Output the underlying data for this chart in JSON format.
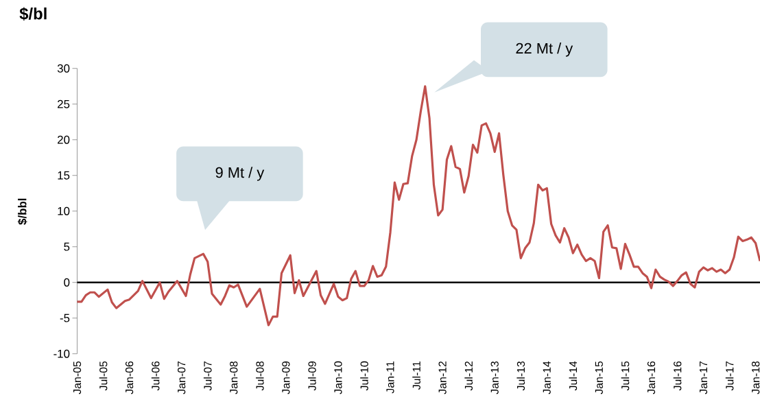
{
  "chart_data": {
    "type": "line",
    "title": "$/bl",
    "ylabel": "$/bbl",
    "color": "#c0504d",
    "marker": "none",
    "line_style": "solid",
    "x": [
      "2005-01",
      "2005-02",
      "2005-03",
      "2005-04",
      "2005-05",
      "2005-06",
      "2005-08",
      "2005-09",
      "2005-10",
      "2005-12",
      "2006-01",
      "2006-03",
      "2006-04",
      "2006-06",
      "2006-08",
      "2006-09",
      "2006-10",
      "2006-12",
      "2007-02",
      "2007-03",
      "2007-04",
      "2007-06",
      "2007-07",
      "2007-08",
      "2007-10",
      "2007-11",
      "2007-12",
      "2008-01",
      "2008-02",
      "2008-04",
      "2008-07",
      "2008-09",
      "2008-10",
      "2008-11",
      "2008-12",
      "2009-02",
      "2009-03",
      "2009-04",
      "2009-05",
      "2009-08",
      "2009-09",
      "2009-10",
      "2009-12",
      "2010-01",
      "2010-02",
      "2010-03",
      "2010-04",
      "2010-05",
      "2010-06",
      "2010-07",
      "2010-08",
      "2010-09",
      "2010-10",
      "2010-11",
      "2010-12",
      "2011-01",
      "2011-02",
      "2011-03",
      "2011-04",
      "2011-05",
      "2011-06",
      "2011-07",
      "2011-08",
      "2011-09",
      "2011-10",
      "2011-11",
      "2011-12",
      "2012-01",
      "2012-02",
      "2012-03",
      "2012-04",
      "2012-05",
      "2012-06",
      "2012-07",
      "2012-08",
      "2012-09",
      "2012-10",
      "2012-11",
      "2012-12",
      "2013-01",
      "2013-02",
      "2013-03",
      "2013-04",
      "2013-05",
      "2013-06",
      "2013-07",
      "2013-08",
      "2013-09",
      "2013-10",
      "2013-11",
      "2013-12",
      "2014-01",
      "2014-02",
      "2014-03",
      "2014-04",
      "2014-05",
      "2014-06",
      "2014-07",
      "2014-08",
      "2014-09",
      "2014-10",
      "2014-11",
      "2014-12",
      "2015-01",
      "2015-02",
      "2015-03",
      "2015-04",
      "2015-05",
      "2015-06",
      "2015-07",
      "2015-08",
      "2015-09",
      "2015-10",
      "2015-11",
      "2015-12",
      "2016-01",
      "2016-02",
      "2016-03",
      "2016-04",
      "2016-05",
      "2016-06",
      "2016-07",
      "2016-08",
      "2016-09",
      "2016-10",
      "2016-11",
      "2016-12",
      "2017-01",
      "2017-02",
      "2017-03",
      "2017-04",
      "2017-05",
      "2017-06",
      "2017-07",
      "2017-08",
      "2017-09",
      "2017-10",
      "2017-11",
      "2017-12",
      "2018-01",
      "2018-02"
    ],
    "values": [
      -2.7,
      -2.7,
      -1.8,
      -1.4,
      -1.4,
      -2.0,
      -1.0,
      -2.8,
      -3.6,
      -2.6,
      -2.4,
      -1.2,
      0.2,
      -2.2,
      0,
      -2.3,
      -1.3,
      0.2,
      -1.9,
      1.1,
      3.4,
      4.0,
      2.9,
      -1.6,
      -3.1,
      -1.9,
      -0.4,
      -0.7,
      -0.3,
      -3.4,
      -0.9,
      -6.0,
      -4.8,
      -4.8,
      1.3,
      3.8,
      -1.5,
      0.3,
      -1.9,
      1.6,
      -1.8,
      -3.0,
      -0.2,
      -2.0,
      -2.5,
      -2.2,
      0.5,
      1.6,
      -0.5,
      -0.5,
      0.3,
      2.3,
      0.8,
      1.0,
      2.2,
      7,
      14,
      11.6,
      13.8,
      13.9,
      17.7,
      20,
      24,
      27.5,
      23,
      13.7,
      9.4,
      10.2,
      17.2,
      19.1,
      16.2,
      15.9,
      12.6,
      14.9,
      19.3,
      18.2,
      22,
      22.3,
      20.9,
      18.3,
      20.9,
      15,
      10,
      8,
      7.4,
      3.4,
      4.8,
      5.6,
      8.3,
      13.7,
      12.9,
      13.2,
      8.2,
      6.6,
      5.6,
      7.6,
      6.3,
      4.1,
      5.3,
      3.9,
      3.0,
      3.4,
      3.0,
      0.6,
      7.1,
      8.0,
      4.9,
      4.8,
      1.9,
      5.4,
      3.9,
      2.2,
      2.2,
      1.3,
      0.8,
      -0.8,
      1.8,
      0.8,
      0.4,
      0.1,
      -0.5,
      0.2,
      1.0,
      1.4,
      -0.2,
      -0.7,
      1.5,
      2.1,
      1.7,
      2.0,
      1.5,
      1.8,
      1.3,
      1.8,
      3.5,
      6.4,
      5.8,
      6.0,
      6.3,
      5.5,
      3.0
    ],
    "xlim": [
      "2005-01",
      "2018-02"
    ],
    "ylim": [
      -10,
      30
    ],
    "yticks": [
      -10,
      -5,
      0,
      5,
      10,
      15,
      20,
      25,
      30
    ],
    "xticks": [
      {
        "value": "2005-01",
        "label": "Jan-05"
      },
      {
        "value": "2005-07",
        "label": "Jul-05"
      },
      {
        "value": "2006-01",
        "label": "Jan-06"
      },
      {
        "value": "2006-07",
        "label": "Jul-06"
      },
      {
        "value": "2007-01",
        "label": "Jan-07"
      },
      {
        "value": "2007-07",
        "label": "Jul-07"
      },
      {
        "value": "2008-01",
        "label": "Jan-08"
      },
      {
        "value": "2008-07",
        "label": "Jul-08"
      },
      {
        "value": "2009-01",
        "label": "Jan-09"
      },
      {
        "value": "2009-07",
        "label": "Jul-09"
      },
      {
        "value": "2010-01",
        "label": "Jan-10"
      },
      {
        "value": "2010-07",
        "label": "Jul-10"
      },
      {
        "value": "2011-01",
        "label": "Jan-11"
      },
      {
        "value": "2011-07",
        "label": "Jul-11"
      },
      {
        "value": "2012-01",
        "label": "Jan-12"
      },
      {
        "value": "2012-07",
        "label": "Jul-12"
      },
      {
        "value": "2013-01",
        "label": "Jan-13"
      },
      {
        "value": "2013-07",
        "label": "Jul-13"
      },
      {
        "value": "2014-01",
        "label": "Jan-14"
      },
      {
        "value": "2014-07",
        "label": "Jul-14"
      },
      {
        "value": "2015-01",
        "label": "Jan-15"
      },
      {
        "value": "2015-07",
        "label": "Jul-15"
      },
      {
        "value": "2016-01",
        "label": "Jan-16"
      },
      {
        "value": "2016-07",
        "label": "Jul-16"
      },
      {
        "value": "2017-01",
        "label": "Jan-17"
      },
      {
        "value": "2017-07",
        "label": "Jul-17"
      },
      {
        "value": "2018-01",
        "label": "Jan-18"
      }
    ],
    "ref_lines": [
      {
        "axis": "y",
        "value": 0,
        "color": "#000000"
      }
    ],
    "annotations": [
      "9 Mt / y",
      "22 Mt / y"
    ]
  }
}
